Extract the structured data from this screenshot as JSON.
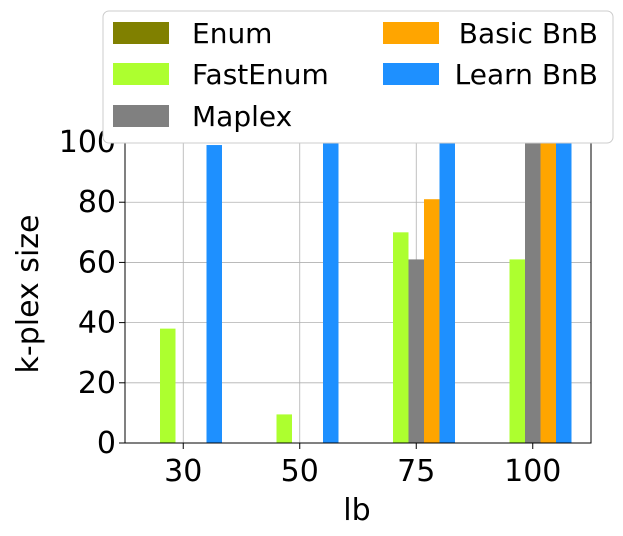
{
  "chart_data": {
    "type": "bar",
    "xlabel": "lb",
    "ylabel": "k-plex size",
    "categories": [
      "30",
      "50",
      "75",
      "100"
    ],
    "ylim": [
      0,
      103
    ],
    "yticks": [
      0,
      20,
      40,
      60,
      80,
      100
    ],
    "grid": true,
    "legend_position": "top",
    "series": [
      {
        "name": "Enum",
        "color": "#808000",
        "values": [
          0,
          0,
          0,
          0
        ]
      },
      {
        "name": "FastEnum",
        "color": "#adff2f",
        "values": [
          38,
          9.5,
          70,
          61
        ]
      },
      {
        "name": "Maplex",
        "color": "#808080",
        "values": [
          0,
          0,
          61,
          102
        ]
      },
      {
        "name": "Basic BnB",
        "color": "#ffa500",
        "values": [
          0,
          0,
          81,
          102
        ]
      },
      {
        "name": "Learn BnB",
        "color": "#1e90ff",
        "values": [
          99,
          101,
          102,
          102
        ]
      }
    ]
  }
}
